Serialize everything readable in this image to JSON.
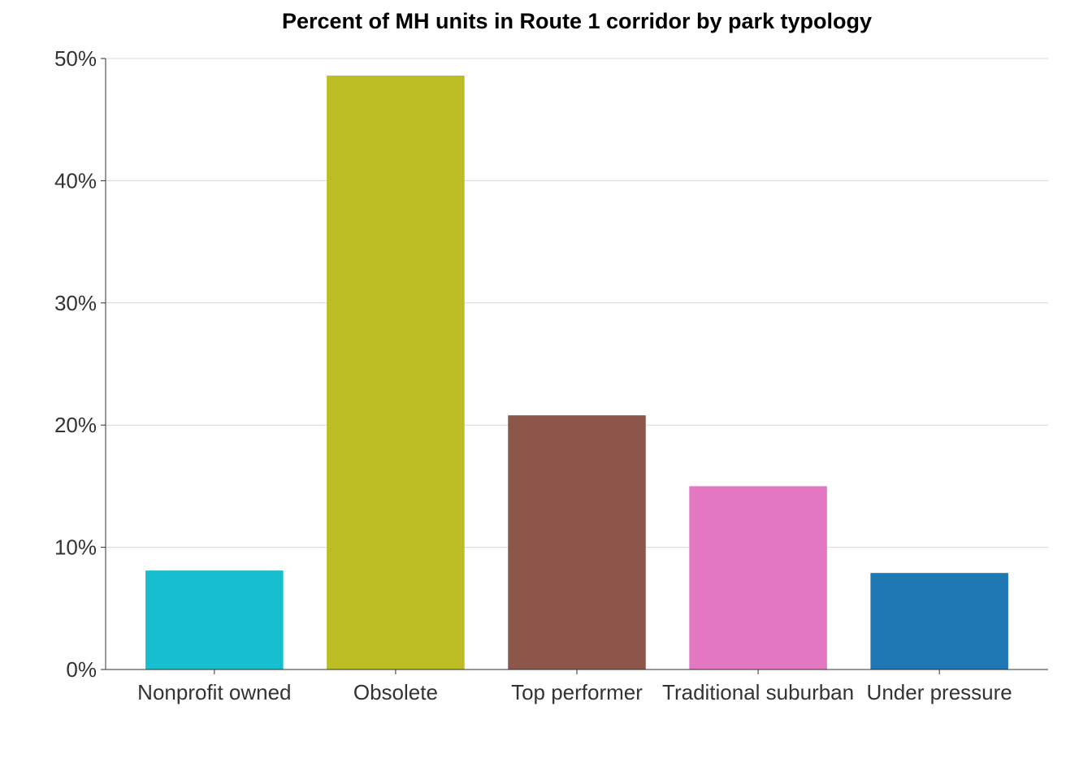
{
  "chart_data": {
    "type": "bar",
    "title": "Percent of MH units in Route 1 corridor by park typology",
    "xlabel": "",
    "ylabel": "",
    "categories": [
      "Nonprofit owned",
      "Obsolete",
      "Top performer",
      "Traditional suburban",
      "Under pressure"
    ],
    "values": [
      8.1,
      48.6,
      20.8,
      15.0,
      7.9
    ],
    "colors": [
      "#17becf",
      "#bcbd22",
      "#8c564b",
      "#e377c2",
      "#1f77b4"
    ],
    "ylim": [
      0,
      50
    ],
    "yticks": [
      0,
      10,
      20,
      30,
      40,
      50
    ],
    "ytick_labels": [
      "0%",
      "10%",
      "20%",
      "30%",
      "40%",
      "50%"
    ],
    "grid": true,
    "legend": "none"
  }
}
